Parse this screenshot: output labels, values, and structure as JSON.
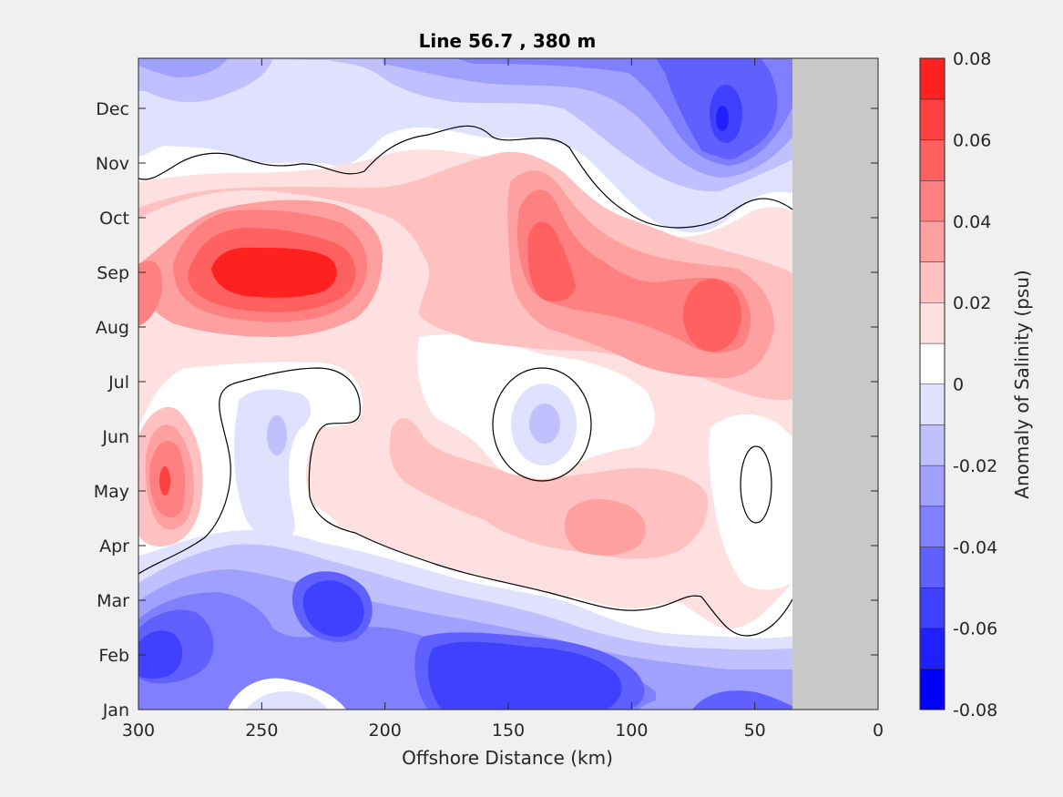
{
  "chart_data": {
    "type": "heatmap",
    "subtype": "filled-contour",
    "title": "Line 56.7 , 380 m",
    "xlabel": "Offshore Distance (km)",
    "ylabel": "",
    "xlim": [
      300,
      0
    ],
    "x_reversed": true,
    "x_ticks": [
      300,
      250,
      200,
      150,
      100,
      50,
      0
    ],
    "y_ticks": [
      "Jan",
      "Feb",
      "Mar",
      "Apr",
      "May",
      "Jun",
      "Jul",
      "Aug",
      "Sep",
      "Oct",
      "Nov",
      "Dec"
    ],
    "data_extent_km": [
      35,
      300
    ],
    "no_data_region_km": [
      0,
      35
    ],
    "colorbar": {
      "label": "Anomaly of Salinity (psu)",
      "range": [
        -0.08,
        0.08
      ],
      "tick_labels": [
        "0.08",
        "0.06",
        "0.04",
        "0.02",
        "0",
        "-0.02",
        "-0.04",
        "-0.06",
        "-0.08"
      ],
      "tick_values": [
        0.08,
        0.06,
        0.04,
        0.02,
        0,
        -0.02,
        -0.04,
        -0.06,
        -0.08
      ],
      "levels": [
        -0.08,
        -0.07,
        -0.06,
        -0.05,
        -0.04,
        -0.03,
        -0.02,
        -0.01,
        0,
        0.01,
        0.02,
        0.03,
        0.04,
        0.05,
        0.06,
        0.07,
        0.08
      ],
      "colors": [
        "#0000ff",
        "#2020ff",
        "#4040ff",
        "#6060ff",
        "#8080ff",
        "#a0a0ff",
        "#c0c0ff",
        "#e0e0ff",
        "#ffffff",
        "#ffffff",
        "#ffe0e0",
        "#ffc0c0",
        "#ffa0a0",
        "#ff8080",
        "#ff6060",
        "#ff4040",
        "#ff2020",
        "#ff0000"
      ]
    },
    "contour_line_value": 0,
    "features": [
      {
        "month": 9.0,
        "x_km": 245,
        "anomaly": 0.06
      },
      {
        "month": 9.0,
        "x_km": 130,
        "anomaly": 0.04
      },
      {
        "month": 8.7,
        "x_km": 65,
        "anomaly": 0.04
      },
      {
        "month": 5.0,
        "x_km": 290,
        "anomaly": 0.05
      },
      {
        "month": 4.4,
        "x_km": 110,
        "anomaly": 0.03
      },
      {
        "month": 6.0,
        "x_km": 135,
        "anomaly": -0.02
      },
      {
        "month": 1.8,
        "x_km": 290,
        "anomaly": -0.07
      },
      {
        "month": 2.1,
        "x_km": 140,
        "anomaly": -0.06
      },
      {
        "month": 2.7,
        "x_km": 225,
        "anomaly": -0.06
      },
      {
        "month": 12.0,
        "x_km": 65,
        "anomaly": -0.06
      }
    ]
  }
}
